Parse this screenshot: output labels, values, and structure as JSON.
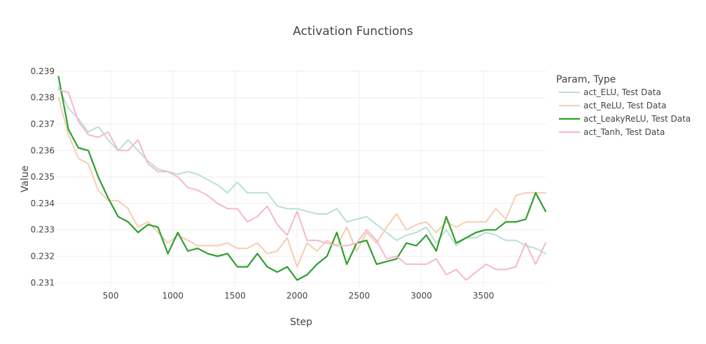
{
  "chart_data": {
    "type": "line",
    "title": "Activation Functions",
    "xlabel": "Step",
    "ylabel": "Value",
    "xlim": [
      60,
      4000
    ],
    "ylim": [
      0.23085,
      0.23905
    ],
    "x_ticks": [
      500,
      1000,
      1500,
      2000,
      2500,
      3000,
      3500
    ],
    "y_ticks": [
      0.231,
      0.232,
      0.233,
      0.234,
      0.235,
      0.236,
      0.237,
      0.238,
      0.239
    ],
    "grid": true,
    "legend_title": "Param, Type",
    "legend_position": "top-right",
    "x": [
      80,
      160,
      240,
      320,
      400,
      480,
      560,
      640,
      720,
      800,
      880,
      960,
      1040,
      1120,
      1200,
      1280,
      1360,
      1440,
      1520,
      1600,
      1680,
      1760,
      1840,
      1920,
      2000,
      2080,
      2160,
      2240,
      2320,
      2400,
      2480,
      2560,
      2640,
      2720,
      2800,
      2880,
      2960,
      3040,
      3120,
      3200,
      3280,
      3360,
      3440,
      3520,
      3600,
      3680,
      3760,
      3840,
      3920,
      4000
    ],
    "series": [
      {
        "name": "act_ELU, Test Data",
        "color": "#b7e1d5",
        "width": 2,
        "values": [
          0.2384,
          0.2376,
          0.2372,
          0.2367,
          0.2369,
          0.2364,
          0.236,
          0.2364,
          0.236,
          0.2356,
          0.2353,
          0.2352,
          0.2351,
          0.2352,
          0.2351,
          0.2349,
          0.2347,
          0.2344,
          0.2348,
          0.2344,
          0.2344,
          0.2344,
          0.2339,
          0.2338,
          0.2338,
          0.2337,
          0.2336,
          0.2336,
          0.2338,
          0.2333,
          0.2334,
          0.2335,
          0.2332,
          0.2329,
          0.2326,
          0.2328,
          0.2329,
          0.2331,
          0.2325,
          0.233,
          0.2324,
          0.2327,
          0.2327,
          0.2329,
          0.2328,
          0.2326,
          0.2326,
          0.2324,
          0.2323,
          0.2321
        ]
      },
      {
        "name": "act_ReLU, Test Data",
        "color": "#f5cdb0",
        "width": 2,
        "values": [
          0.238,
          0.2366,
          0.2357,
          0.2355,
          0.2345,
          0.2341,
          0.2341,
          0.2338,
          0.2331,
          0.2333,
          0.2329,
          0.2325,
          0.2328,
          0.2326,
          0.2324,
          0.2324,
          0.2324,
          0.2325,
          0.2323,
          0.2323,
          0.2325,
          0.2321,
          0.2322,
          0.2327,
          0.2316,
          0.2325,
          0.2322,
          0.2326,
          0.2324,
          0.2331,
          0.2322,
          0.2329,
          0.2325,
          0.2331,
          0.2336,
          0.233,
          0.2332,
          0.2333,
          0.2329,
          0.2333,
          0.2331,
          0.2333,
          0.2333,
          0.2333,
          0.2338,
          0.2334,
          0.2343,
          0.2344,
          0.2344,
          0.2344
        ]
      },
      {
        "name": "act_LeakyReLU, Test Data",
        "color": "#2ca02c",
        "width": 2.2,
        "values": [
          0.2388,
          0.2368,
          0.2361,
          0.236,
          0.235,
          0.2342,
          0.2335,
          0.2333,
          0.2329,
          0.2332,
          0.2331,
          0.2321,
          0.2329,
          0.2322,
          0.2323,
          0.2321,
          0.232,
          0.2321,
          0.2316,
          0.2316,
          0.2321,
          0.2316,
          0.2314,
          0.2316,
          0.2311,
          0.2313,
          0.2317,
          0.232,
          0.2329,
          0.2317,
          0.2325,
          0.2326,
          0.2317,
          0.2318,
          0.2319,
          0.2325,
          0.2324,
          0.2328,
          0.2322,
          0.2335,
          0.2325,
          0.2327,
          0.2329,
          0.233,
          0.233,
          0.2333,
          0.2333,
          0.2334,
          0.2344,
          0.2337
        ]
      },
      {
        "name": "act_Tanh, Test Data",
        "color": "#f7b6d2",
        "width": 2,
        "values": [
          0.2383,
          0.2382,
          0.2371,
          0.2366,
          0.2365,
          0.2367,
          0.236,
          0.236,
          0.2364,
          0.2355,
          0.2352,
          0.2352,
          0.235,
          0.2346,
          0.2345,
          0.2343,
          0.234,
          0.2338,
          0.2338,
          0.2333,
          0.2335,
          0.2339,
          0.2332,
          0.2328,
          0.2337,
          0.2326,
          0.2326,
          0.2325,
          0.2324,
          0.2324,
          0.2325,
          0.233,
          0.2326,
          0.2319,
          0.232,
          0.2317,
          0.2317,
          0.2317,
          0.2319,
          0.2313,
          0.2315,
          0.2311,
          0.2314,
          0.2317,
          0.2315,
          0.2315,
          0.2316,
          0.2325,
          0.2317,
          0.2325
        ]
      }
    ]
  }
}
